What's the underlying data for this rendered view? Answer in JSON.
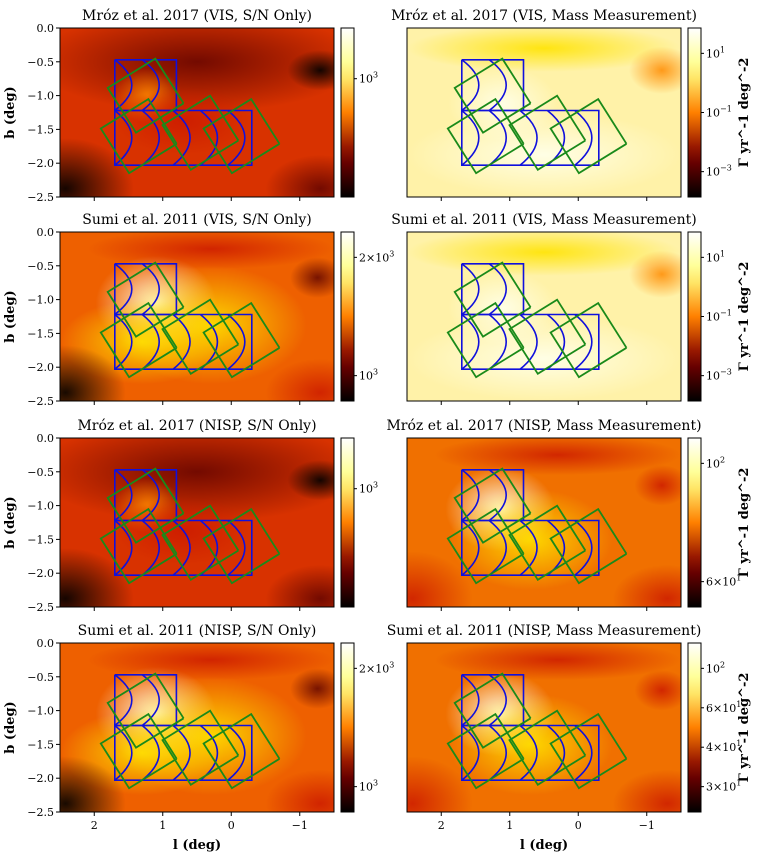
{
  "chart_data": [
    {
      "type": "heatmap",
      "title": "Mróz et al. 2017 (VIS, S/N Only)",
      "ylabel": "b (deg)",
      "xlabel": "",
      "cbar_label": "",
      "cbar_ticks": [
        "10^3"
      ],
      "profile": "sn",
      "cmap": "afmhot"
    },
    {
      "type": "heatmap",
      "title": "Mróz et al. 2017 (VIS, Mass Measurement)",
      "ylabel": "",
      "xlabel": "",
      "cbar_label": "Γ  yr^-1 deg^-2",
      "cbar_ticks": [
        "10^1",
        "10^-1",
        "10^-3"
      ],
      "profile": "massvis",
      "cmap": "afmhot"
    },
    {
      "type": "heatmap",
      "title": "Sumi et al. 2011 (VIS, S/N Only)",
      "ylabel": "b (deg)",
      "xlabel": "",
      "cbar_label": "",
      "cbar_ticks": [
        "2×10^3",
        "10^3"
      ],
      "profile": "sumi",
      "cmap": "afmhot"
    },
    {
      "type": "heatmap",
      "title": "Sumi et al. 2011 (VIS, Mass Measurement)",
      "ylabel": "",
      "xlabel": "",
      "cbar_label": "Γ  yr^-1 deg^-2",
      "cbar_ticks": [
        "10^1",
        "10^-1",
        "10^-3"
      ],
      "profile": "massvis",
      "cmap": "afmhot"
    },
    {
      "type": "heatmap",
      "title": "Mróz et al. 2017 (NISP, S/N Only)",
      "ylabel": "b (deg)",
      "xlabel": "",
      "cbar_label": "",
      "cbar_ticks": [
        "10^3"
      ],
      "profile": "sn",
      "cmap": "afmhot"
    },
    {
      "type": "heatmap",
      "title": "Mróz et al. 2017 (NISP, Mass Measurement)",
      "ylabel": "",
      "xlabel": "",
      "cbar_label": "Γ  yr^-1 deg^-2",
      "cbar_ticks": [
        "10^2",
        "6×10^1"
      ],
      "profile": "mass",
      "cmap": "afmhot"
    },
    {
      "type": "heatmap",
      "title": "Sumi et al. 2011 (NISP, S/N Only)",
      "ylabel": "b (deg)",
      "xlabel": "l (deg)",
      "cbar_label": "",
      "cbar_ticks": [
        "2×10^3",
        "10^3"
      ],
      "profile": "sumi",
      "cmap": "afmhot"
    },
    {
      "type": "heatmap",
      "title": "Sumi et al. 2011 (NISP, Mass Measurement)",
      "ylabel": "",
      "xlabel": "l (deg)",
      "cbar_label": "Γ  yr^-1 deg^-2",
      "cbar_ticks": [
        "10^2",
        "6×10^1",
        "4×10^1",
        "3×10^1"
      ],
      "profile": "mass",
      "cmap": "afmhot"
    }
  ],
  "axes": {
    "xlim": [
      2.5,
      -1.5
    ],
    "ylim": [
      -2.5,
      0.0
    ],
    "xticks": [
      {
        "v": 2,
        "label": "2"
      },
      {
        "v": 1,
        "label": "1"
      },
      {
        "v": 0,
        "label": "0"
      },
      {
        "v": -1,
        "label": "−1"
      }
    ],
    "yticks": [
      {
        "v": 0,
        "label": "0.0"
      },
      {
        "v": -0.5,
        "label": "−0.5"
      },
      {
        "v": -1,
        "label": "−1.0"
      },
      {
        "v": -1.5,
        "label": "−1.5"
      },
      {
        "v": -2,
        "label": "−2.0"
      },
      {
        "v": -2.5,
        "label": "−2.5"
      }
    ]
  },
  "overlays": {
    "blue_color": "#1010dd",
    "green_color": "#1a8a1a"
  }
}
